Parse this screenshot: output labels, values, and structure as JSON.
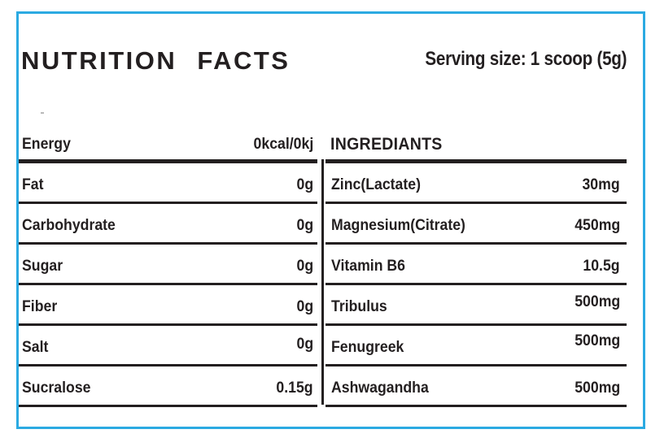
{
  "colors": {
    "border_blue": "#2baae2",
    "ink": "#231f20"
  },
  "label": {
    "title": "NUTRITION FACTS",
    "serving_size": "Serving size: 1 scoop (5g)"
  },
  "nutrition_table": {
    "header": {
      "label": "Energy",
      "value": "0kcal/0kj"
    },
    "rows": [
      {
        "label": "Fat",
        "value": "0g"
      },
      {
        "label": "Carbohydrate",
        "value": "0g"
      },
      {
        "label": "Sugar",
        "value": "0g"
      },
      {
        "label": "Fiber",
        "value": "0g"
      },
      {
        "label": "Salt",
        "value": "0g"
      },
      {
        "label": "Sucralose",
        "value": "0.15g"
      }
    ]
  },
  "ingredients_table": {
    "header": {
      "label": "INGREDIANTS"
    },
    "rows": [
      {
        "label": "Zinc(Lactate)",
        "value": "30mg"
      },
      {
        "label": "Magnesium(Citrate)",
        "value": "450mg"
      },
      {
        "label": "Vitamin B6",
        "value": "10.5g"
      },
      {
        "label": "Tribulus",
        "value": "500mg"
      },
      {
        "label": "Fenugreek",
        "value": "500mg"
      },
      {
        "label": "Ashwagandha",
        "value": "500mg"
      }
    ]
  }
}
